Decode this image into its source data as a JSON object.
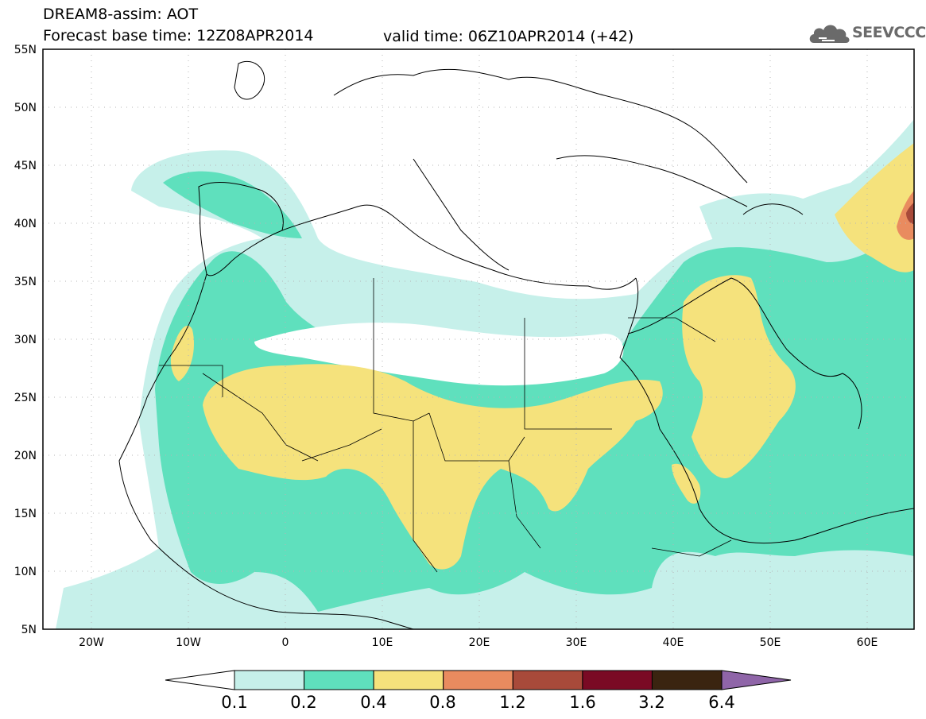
{
  "header": {
    "title_line1": "DREAM8-assim: AOT",
    "title_line2": "Forecast base time: 12Z08APR2014",
    "valid_time": "valid time: 06Z10APR2014 (+42)"
  },
  "logo": {
    "text": "SEEVCCC",
    "icon": "cloud-icon"
  },
  "map": {
    "lat_labels": [
      "55N",
      "50N",
      "45N",
      "40N",
      "35N",
      "30N",
      "25N",
      "20N",
      "15N",
      "10N",
      "5N"
    ],
    "lon_labels": [
      "20W",
      "10W",
      "0",
      "10E",
      "20E",
      "30E",
      "40E",
      "50E",
      "60E"
    ],
    "grid": "dotted",
    "colors": {
      "band_0_1": "#c6f0ea",
      "band_0_2": "#5fe0bd",
      "band_0_4": "#f5e27c",
      "band_0_8": "#e98b5f",
      "band_1_2": "#a84a3a"
    }
  },
  "colorbar": {
    "labels": [
      "0.1",
      "0.2",
      "0.4",
      "0.8",
      "1.2",
      "1.6",
      "3.2",
      "6.4"
    ],
    "colors": [
      "#c6f0ea",
      "#5fe0bd",
      "#f5e27c",
      "#e98b5f",
      "#a84a3a",
      "#7a0a24",
      "#3a2410",
      "#8f65a8"
    ]
  }
}
